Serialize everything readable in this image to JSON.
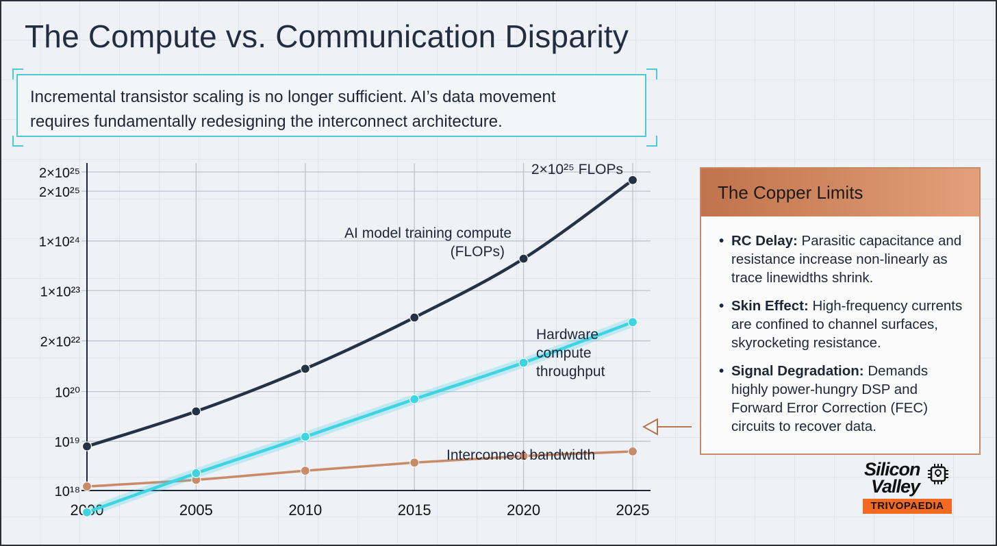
{
  "title": "The Compute vs. Communication Disparity",
  "subtitle_line1": "Incremental transistor scaling is no longer sufficient. AI’s data movement",
  "subtitle_line2": "requires fundamentally redesigning the interconnect architecture.",
  "callout": {
    "heading": "The Copper Limits",
    "items": [
      {
        "term": "RC Delay:",
        "text": " Parasitic capacitance and resistance increase non-linearly as trace linewidths shrink."
      },
      {
        "term": "Skin Effect:",
        "text": " High-frequency currents are confined to channel surfaces, skyrocketing resistance."
      },
      {
        "term": "Signal Degradation:",
        "text": " Demands highly power-hungry DSP and Forward Error Correction (FEC) circuits to recover data."
      }
    ]
  },
  "logo": {
    "line1": "Silicon",
    "line2": "Valley",
    "badge": "TRIVOPAEDIA"
  },
  "colors": {
    "compute": "#253246",
    "hardware": "#3fd4e2",
    "interconnect": "#c98a68",
    "accent_box": "#4cc9d3"
  },
  "chart_data": {
    "type": "line",
    "x": [
      2000,
      2005,
      2010,
      2015,
      2020,
      2025
    ],
    "y_ticks": [
      "2×10²⁵",
      "2×10²⁵",
      "1×10²⁴",
      "1×10²³",
      "2×10²²",
      "10²⁰",
      "10¹⁹",
      "10¹⁸"
    ],
    "y_tick_levels": [
      8.08,
      7.7,
      6.72,
      5.74,
      4.75,
      3.75,
      2.77,
      1.8
    ],
    "y_scale": "log (labelled ticks)",
    "grid": true,
    "series": [
      {
        "name": "AI model training compute (FLOPs)",
        "levels": [
          2.67,
          3.36,
          4.2,
          5.21,
          6.37,
          7.92
        ],
        "end_label": "2×10²⁵ FLOPs"
      },
      {
        "name": "Hardware compute throughput",
        "levels": [
          1.37,
          2.14,
          2.86,
          3.6,
          4.32,
          5.12
        ]
      },
      {
        "name": "Interconnect bandwidth",
        "levels": [
          1.88,
          2.01,
          2.19,
          2.35,
          2.48,
          2.57
        ]
      }
    ],
    "labels": {
      "compute_line1": "AI model training compute",
      "compute_line2": "(FLOPs)",
      "end_label": "2×10²⁵ FLOPs",
      "hw_line1": "Hardware",
      "hw_line2": "compute",
      "hw_line3": "throughput",
      "interconnect": "Interconnect bandwidth"
    }
  }
}
